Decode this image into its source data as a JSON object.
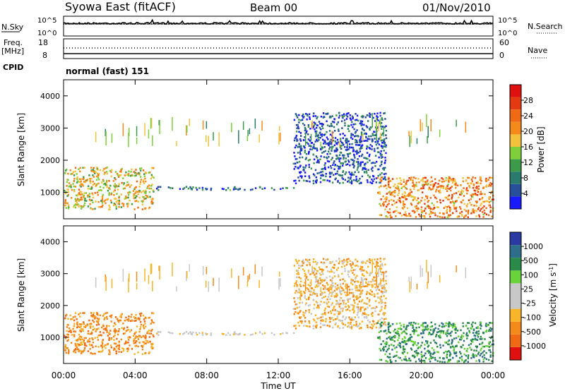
{
  "header": {
    "station": "Syowa East (fitACF)",
    "beam": "Beam 00",
    "date": "01/Nov/2010"
  },
  "left_labels": {
    "nsky": "N.Sky",
    "freq": "Freq.",
    "freq_unit": "[MHz]",
    "cpid": "CPID"
  },
  "right_labels": {
    "nsearch": "N.Search",
    "nave": "Nave"
  },
  "cpid_text": "normal (fast) 151",
  "colors": {
    "power_scale": [
      "#1a1aff",
      "#284f9a",
      "#2a7b6e",
      "#3d9a4a",
      "#7ecf3a",
      "#f2c23a",
      "#f58a1a",
      "#f06a16",
      "#e33a12",
      "#e01010"
    ],
    "velocity_scale": [
      "#e01010",
      "#f06a16",
      "#f58a1a",
      "#f7b52a",
      "#c8c8c8",
      "#c8c8c8",
      "#6ad23a",
      "#2a8a4a",
      "#2e6e8a",
      "#2a3aa0"
    ],
    "ground_scatter": "#b8b8b8"
  },
  "chart_data": [
    {
      "type": "line",
      "name": "noise-panel",
      "left_axis_ticks": [
        "10^5",
        "10^0"
      ],
      "right_axis_ticks": [
        "10^5",
        "10^0"
      ],
      "series": [
        {
          "name": "N.Sky",
          "style": "solid"
        },
        {
          "name": "N.Search",
          "style": "dotted"
        }
      ]
    },
    {
      "type": "line",
      "name": "freq-nave-panel",
      "left_axis_ticks": [
        "18",
        "8"
      ],
      "right_axis_ticks": [
        "60",
        "0"
      ],
      "series": [
        {
          "name": "Freq.",
          "style": "solid"
        },
        {
          "name": "Nave",
          "style": "dotted"
        }
      ]
    },
    {
      "type": "heatmap",
      "name": "power-panel",
      "ylabel": "Slant Range [km]",
      "yticks": [
        1000,
        2000,
        3000,
        4000
      ],
      "ylim": [
        180,
        4500
      ],
      "xlim": [
        0,
        24
      ],
      "colorbar": {
        "label": "Power [dB]",
        "ticks": [
          4,
          8,
          12,
          16,
          20,
          24,
          28
        ],
        "range": [
          0,
          30
        ]
      },
      "regions": [
        {
          "t0": 0.0,
          "t1": 5.0,
          "r0": 500,
          "r1": 1800,
          "level": 0.55
        },
        {
          "t0": 5.0,
          "t1": 13.0,
          "r0": 1100,
          "r1": 1200,
          "level": 0.18
        },
        {
          "t0": 12.8,
          "t1": 18.0,
          "r0": 1300,
          "r1": 3500,
          "level": 0.1
        },
        {
          "t0": 17.5,
          "t1": 24.0,
          "r0": 250,
          "r1": 1500,
          "level": 0.7
        }
      ]
    },
    {
      "type": "heatmap",
      "name": "velocity-panel",
      "ylabel": "Slant Range [km]",
      "yticks": [
        1000,
        2000,
        3000,
        4000
      ],
      "ylim": [
        180,
        4500
      ],
      "xlim": [
        0,
        24
      ],
      "xticks": [
        "00:00",
        "04:00",
        "08:00",
        "12:00",
        "16:00",
        "20:00",
        "00:00"
      ],
      "xlabel": "Time UT",
      "colorbar": {
        "label": "Velocity [m s^-1]",
        "ticks": [
          "1000",
          "500",
          "100",
          "25",
          "-25",
          "-100",
          "-500",
          "-1000"
        ]
      },
      "regions": [
        {
          "t0": 0.0,
          "t1": 5.0,
          "r0": 500,
          "r1": 1800,
          "velocity": -300
        },
        {
          "t0": 5.0,
          "t1": 13.0,
          "r0": 1100,
          "r1": 1200,
          "velocity": 0
        },
        {
          "t0": 12.8,
          "t1": 18.0,
          "r0": 1300,
          "r1": 3500,
          "velocity": -80
        },
        {
          "t0": 17.5,
          "t1": 24.0,
          "r0": 250,
          "r1": 1500,
          "velocity": 150
        }
      ]
    }
  ]
}
